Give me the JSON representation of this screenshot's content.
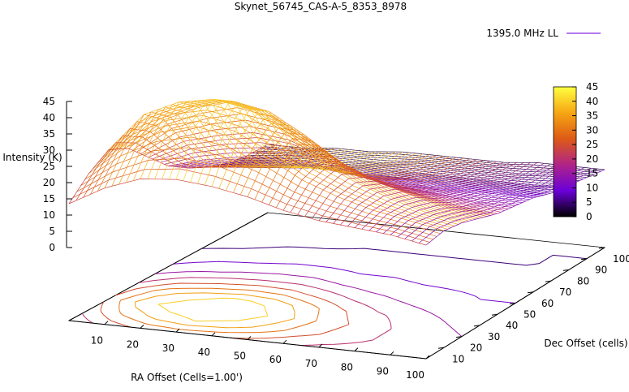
{
  "chart_data": {
    "type": "surface",
    "title": "Skynet_56745_CAS-A-5_8353_8978",
    "legend": {
      "entries": [
        "1395.0 MHz LL"
      ],
      "placement": "top-right"
    },
    "xlabel": "RA Offset (Cells=1.00')",
    "ylabel": "Dec Offset (cells)",
    "zlabel": "Intensity (K)",
    "x_ticks": [
      "10",
      "20",
      "30",
      "40",
      "50",
      "60",
      "70",
      "80",
      "90",
      "100"
    ],
    "y_ticks": [
      "10",
      "20",
      "30",
      "40",
      "50",
      "60",
      "70",
      "80",
      "90",
      "100"
    ],
    "z_ticks": [
      "0",
      "5",
      "10",
      "15",
      "20",
      "25",
      "30",
      "35",
      "40",
      "45"
    ],
    "colorbar_ticks": [
      "0",
      "5",
      "10",
      "15",
      "20",
      "25",
      "30",
      "35",
      "40",
      "45"
    ],
    "xlim": [
      0,
      100
    ],
    "ylim": [
      0,
      100
    ],
    "zlim": [
      0,
      45
    ],
    "colormap": [
      "#000000",
      "#6a00d8",
      "#b02488",
      "#dd5a16",
      "#f6a613",
      "#ffff40"
    ],
    "peak": {
      "x": 35,
      "y": 25,
      "z": 45
    },
    "surface_grid": {
      "x": [
        0,
        10,
        20,
        30,
        40,
        50,
        60,
        70,
        80,
        90,
        100
      ],
      "y": [
        0,
        10,
        20,
        30,
        40,
        50,
        60,
        70,
        80,
        90,
        100
      ],
      "z": [
        [
          16,
          22,
          26,
          27,
          26,
          24,
          21,
          19,
          18,
          17,
          15
        ],
        [
          22,
          31,
          37,
          40,
          38,
          33,
          27,
          23,
          20,
          18,
          16
        ],
        [
          26,
          38,
          43,
          45,
          43,
          37,
          29,
          24,
          20,
          17,
          15
        ],
        [
          23,
          33,
          38,
          41,
          39,
          33,
          26,
          21,
          18,
          15,
          13
        ],
        [
          17,
          23,
          26,
          28,
          27,
          23,
          19,
          16,
          14,
          12,
          11
        ],
        [
          11,
          14,
          16,
          17,
          17,
          15,
          13,
          12,
          11,
          10,
          10
        ],
        [
          7,
          9,
          10,
          11,
          11,
          10,
          10,
          9,
          9,
          9,
          9
        ],
        [
          4,
          5,
          6,
          7,
          7,
          7,
          7,
          7,
          7,
          7,
          7
        ],
        [
          2,
          3,
          4,
          4,
          5,
          5,
          5,
          5,
          5,
          5,
          6
        ],
        [
          1,
          2,
          3,
          3,
          3,
          4,
          4,
          4,
          4,
          5,
          5
        ],
        [
          1,
          1,
          2,
          2,
          3,
          3,
          3,
          3,
          4,
          4,
          4
        ]
      ]
    },
    "contour_levels": [
      5,
      10,
      15,
      20,
      25,
      30,
      35,
      40
    ]
  }
}
